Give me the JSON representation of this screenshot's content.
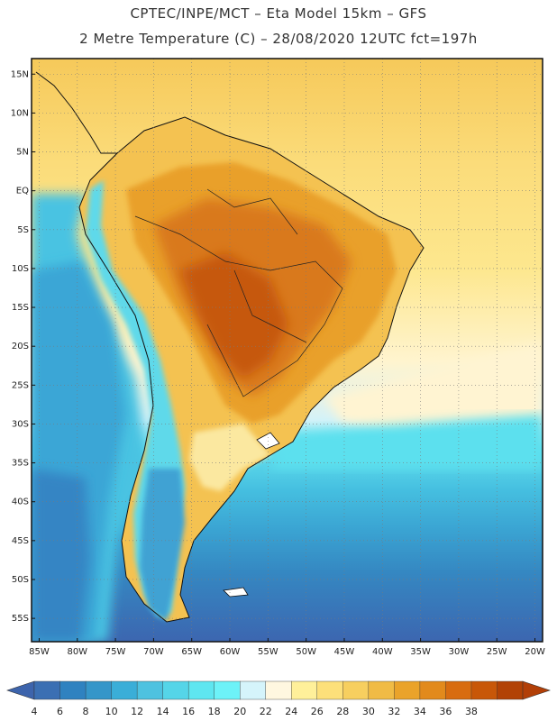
{
  "header": {
    "line1": "CPTEC/INPE/MCT –  Eta Model 15km – GFS",
    "line2": "2 Metre Temperature (C) – 28/08/2020 12UTC fct=197h"
  },
  "map": {
    "lat_labels": [
      "15N",
      "10N",
      "5N",
      "EQ",
      "5S",
      "10S",
      "15S",
      "20S",
      "25S",
      "30S",
      "35S",
      "40S",
      "45S",
      "50S",
      "55S"
    ],
    "lat_values": [
      15,
      10,
      5,
      0,
      -5,
      -10,
      -15,
      -20,
      -25,
      -30,
      -35,
      -40,
      -45,
      -50,
      -55
    ],
    "lon_labels": [
      "85W",
      "80W",
      "75W",
      "70W",
      "65W",
      "60W",
      "55W",
      "50W",
      "45W",
      "40W",
      "35W",
      "30W",
      "25W",
      "20W"
    ],
    "lon_values": [
      -85,
      -80,
      -75,
      -70,
      -65,
      -60,
      -55,
      -50,
      -45,
      -40,
      -35,
      -30,
      -25,
      -20
    ],
    "lat_range": [
      -58,
      17
    ],
    "lon_range": [
      -86,
      -19
    ]
  },
  "colorbar": {
    "labels": [
      "4",
      "6",
      "8",
      "10",
      "12",
      "14",
      "16",
      "18",
      "20",
      "22",
      "24",
      "26",
      "28",
      "30",
      "32",
      "34",
      "36",
      "38"
    ],
    "colors": [
      "#3b6fb3",
      "#2f82c0",
      "#3596c9",
      "#3aaed8",
      "#4ec2e0",
      "#55d5e8",
      "#5ee6f0",
      "#6df2f8",
      "#d5f4fb",
      "#fff7e0",
      "#fff09a",
      "#fde07a",
      "#f7cf5f",
      "#f0bb45",
      "#eaa32a",
      "#e28a1c",
      "#d86c10",
      "#c85708",
      "#b24205"
    ],
    "under_color": "#3d64ac",
    "over_color": "#b23f07"
  }
}
